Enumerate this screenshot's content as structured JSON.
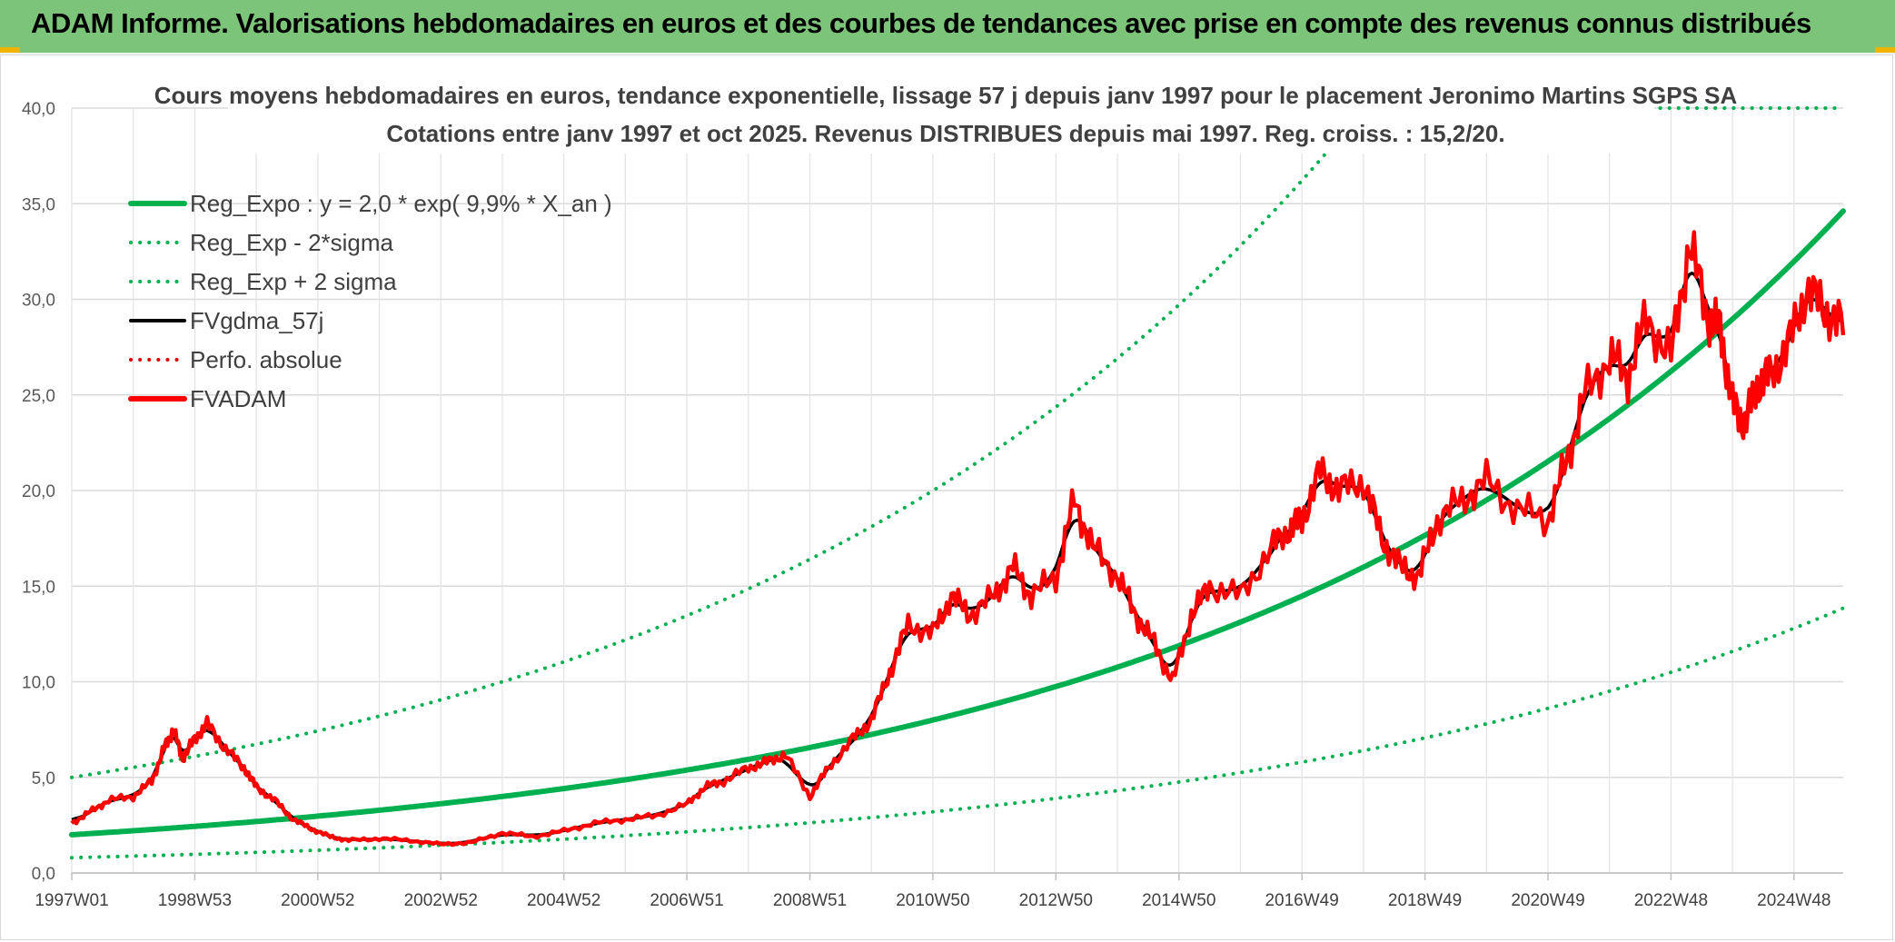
{
  "header": {
    "title": "ADAM Informe. Valorisations hebdomadaires en euros et des courbes de tendances avec prise en compte des revenus connus distribués"
  },
  "chart_data": {
    "type": "line",
    "title_line1": "Cours moyens hebdomadaires en euros, tendance exponentielle, lissage 57 j depuis janv 1997 pour le placement Jeronimo Martins SGPS SA",
    "title_line2": "Cotations entre janv 1997 et oct 2025. Revenus DISTRIBUES depuis mai 1997. Reg. croiss. : 15,2/20.",
    "ylim": [
      0,
      40
    ],
    "xlim": [
      1997.0,
      2025.8
    ],
    "yticks": [
      "0,0",
      "5,0",
      "10,0",
      "15,0",
      "20,0",
      "25,0",
      "30,0",
      "35,0",
      "40,0"
    ],
    "xticks": [
      {
        "label": "1997W01",
        "t": 1997.0
      },
      {
        "label": "1998W53",
        "t": 1999.0
      },
      {
        "label": "2000W52",
        "t": 2001.0
      },
      {
        "label": "2002W52",
        "t": 2003.0
      },
      {
        "label": "2004W52",
        "t": 2005.0
      },
      {
        "label": "2006W51",
        "t": 2007.0
      },
      {
        "label": "2008W51",
        "t": 2009.0
      },
      {
        "label": "2010W50",
        "t": 2011.0
      },
      {
        "label": "2012W50",
        "t": 2013.0
      },
      {
        "label": "2014W50",
        "t": 2015.0
      },
      {
        "label": "2016W49",
        "t": 2017.0
      },
      {
        "label": "2018W49",
        "t": 2019.0
      },
      {
        "label": "2020W49",
        "t": 2021.0
      },
      {
        "label": "2022W48",
        "t": 2023.0
      },
      {
        "label": "2024W48",
        "t": 2025.0
      }
    ],
    "legend": [
      {
        "label": "Reg_Expo : y = 2,0 * exp( 9,9% *  X_an )",
        "color": "#00b050",
        "style": "solid",
        "width": 6
      },
      {
        "label": "Reg_Exp - 2*sigma",
        "color": "#00b050",
        "style": "dotted",
        "width": 4
      },
      {
        "label": "Reg_Exp + 2 sigma",
        "color": "#00b050",
        "style": "dotted",
        "width": 4
      },
      {
        "label": "FVgdma_57j",
        "color": "#000000",
        "style": "solid",
        "width": 4
      },
      {
        "label": "Perfo. absolue",
        "color": "#e00000",
        "style": "dotted",
        "width": 4
      },
      {
        "label": "FVADAM",
        "color": "#ff0000",
        "style": "solid",
        "width": 6
      }
    ],
    "series": [
      {
        "name": "Reg_Expo",
        "model": "exp",
        "a": 2.0,
        "b": 0.099,
        "t0": 1997.0
      },
      {
        "name": "Reg_Exp - 2*sigma",
        "model": "exp",
        "a": 0.8,
        "b": 0.099,
        "t0": 1997.0
      },
      {
        "name": "Reg_Exp + 2 sigma",
        "model": "exp",
        "a": 5.0,
        "b": 0.099,
        "t0": 1997.0
      },
      {
        "name": "FVADAM",
        "t": [
          1997.0,
          1997.3,
          1997.6,
          1998.0,
          1998.3,
          1998.5,
          1998.65,
          1998.8,
          1999.0,
          1999.2,
          1999.5,
          1999.8,
          2000.0,
          2000.3,
          2000.6,
          2000.9,
          2001.2,
          2001.5,
          2002.0,
          2002.5,
          2003.0,
          2003.5,
          2004.0,
          2004.5,
          2005.0,
          2005.5,
          2006.0,
          2006.5,
          2007.0,
          2007.3,
          2007.6,
          2008.0,
          2008.3,
          2008.6,
          2009.0,
          2009.3,
          2009.7,
          2010.0,
          2010.3,
          2010.6,
          2011.0,
          2011.3,
          2011.6,
          2012.0,
          2012.3,
          2012.6,
          2013.0,
          2013.3,
          2013.6,
          2014.0,
          2014.3,
          2014.6,
          2014.9,
          2015.2,
          2015.5,
          2016.0,
          2016.5,
          2016.8,
          2017.0,
          2017.3,
          2017.6,
          2018.0,
          2018.3,
          2018.6,
          2018.9,
          2019.2,
          2019.6,
          2020.0,
          2020.5,
          2021.0,
          2021.3,
          2021.6,
          2022.0,
          2022.3,
          2022.6,
          2023.0,
          2023.3,
          2023.6,
          2023.8,
          2024.0,
          2024.2,
          2024.4,
          2024.6,
          2024.9,
          2025.2,
          2025.5,
          2025.8
        ],
        "v": [
          2.6,
          3.2,
          3.8,
          4.0,
          4.8,
          6.5,
          7.5,
          6.0,
          7.0,
          7.8,
          6.5,
          5.5,
          4.5,
          3.8,
          2.8,
          2.3,
          1.9,
          1.7,
          1.8,
          1.7,
          1.5,
          1.6,
          2.1,
          1.9,
          2.2,
          2.6,
          2.8,
          3.0,
          3.6,
          4.5,
          4.8,
          5.5,
          5.8,
          6.2,
          4.0,
          5.5,
          7.0,
          8.0,
          10.5,
          13.0,
          12.5,
          14.5,
          13.5,
          14.5,
          16.0,
          14.5,
          15.5,
          19.5,
          17.0,
          15.5,
          13.5,
          12.0,
          10.0,
          13.5,
          15.0,
          14.5,
          17.0,
          18.0,
          18.5,
          21.0,
          20.0,
          20.5,
          17.5,
          16.0,
          15.5,
          18.5,
          19.5,
          20.5,
          19.0,
          18.5,
          21.5,
          25.0,
          27.0,
          26.0,
          29.0,
          27.0,
          33.0,
          29.0,
          28.5,
          24.5,
          23.5,
          25.5,
          26.0,
          27.5,
          30.5,
          29.5,
          28.5
        ]
      }
    ]
  }
}
